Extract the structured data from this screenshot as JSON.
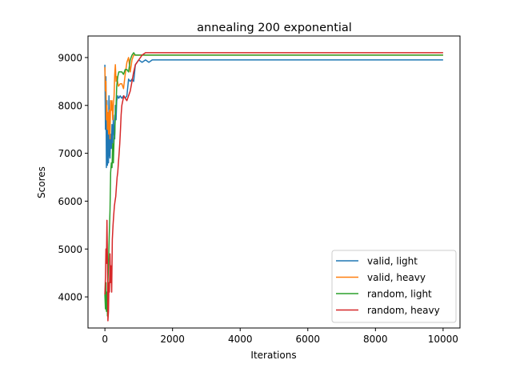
{
  "chart_data": {
    "type": "line",
    "title": "annealing 200 exponential",
    "xlabel": "Iterations",
    "ylabel": "Scores",
    "xlim": [
      -500,
      10500
    ],
    "ylim": [
      3350,
      9450
    ],
    "xticks": [
      0,
      2000,
      4000,
      6000,
      8000,
      10000
    ],
    "yticks": [
      4000,
      5000,
      6000,
      7000,
      8000,
      9000
    ],
    "grid": false,
    "legend_position": "lower-right",
    "series": [
      {
        "name": "valid, light",
        "color": "#1f77b4",
        "points": [
          [
            0,
            8850
          ],
          [
            15,
            7500
          ],
          [
            30,
            8600
          ],
          [
            45,
            6700
          ],
          [
            60,
            8100
          ],
          [
            75,
            6750
          ],
          [
            90,
            7600
          ],
          [
            105,
            6800
          ],
          [
            120,
            8200
          ],
          [
            135,
            7000
          ],
          [
            150,
            6900
          ],
          [
            170,
            7400
          ],
          [
            190,
            7100
          ],
          [
            210,
            7600
          ],
          [
            230,
            7200
          ],
          [
            250,
            7800
          ],
          [
            270,
            7400
          ],
          [
            290,
            7300
          ],
          [
            310,
            8000
          ],
          [
            330,
            7700
          ],
          [
            350,
            8100
          ],
          [
            380,
            8200
          ],
          [
            410,
            8150
          ],
          [
            450,
            8200
          ],
          [
            500,
            8150
          ],
          [
            550,
            8200
          ],
          [
            600,
            8150
          ],
          [
            650,
            8200
          ],
          [
            700,
            8550
          ],
          [
            750,
            8500
          ],
          [
            800,
            8550
          ],
          [
            850,
            8500
          ],
          [
            900,
            8850
          ],
          [
            950,
            8900
          ],
          [
            1000,
            8950
          ],
          [
            1100,
            8900
          ],
          [
            1200,
            8950
          ],
          [
            1300,
            8900
          ],
          [
            1400,
            8950
          ],
          [
            1500,
            8950
          ],
          [
            1700,
            8950
          ],
          [
            2000,
            8950
          ],
          [
            4000,
            8950
          ],
          [
            6000,
            8950
          ],
          [
            8000,
            8950
          ],
          [
            10000,
            8950
          ]
        ]
      },
      {
        "name": "valid, heavy",
        "color": "#ff7f0e",
        "points": [
          [
            0,
            8800
          ],
          [
            15,
            8300
          ],
          [
            30,
            8500
          ],
          [
            45,
            7700
          ],
          [
            60,
            8000
          ],
          [
            75,
            7500
          ],
          [
            90,
            7850
          ],
          [
            110,
            7400
          ],
          [
            130,
            7900
          ],
          [
            150,
            7300
          ],
          [
            170,
            8100
          ],
          [
            190,
            7900
          ],
          [
            210,
            8100
          ],
          [
            230,
            7700
          ],
          [
            250,
            8000
          ],
          [
            270,
            8200
          ],
          [
            290,
            8650
          ],
          [
            310,
            8850
          ],
          [
            330,
            8500
          ],
          [
            350,
            8600
          ],
          [
            400,
            8400
          ],
          [
            450,
            8450
          ],
          [
            500,
            8450
          ],
          [
            550,
            8350
          ],
          [
            600,
            8650
          ],
          [
            650,
            8900
          ],
          [
            700,
            9000
          ],
          [
            750,
            8700
          ],
          [
            800,
            8950
          ],
          [
            850,
            9050
          ],
          [
            900,
            9050
          ],
          [
            1000,
            9050
          ],
          [
            1200,
            9050
          ],
          [
            1500,
            9050
          ],
          [
            2000,
            9050
          ],
          [
            4000,
            9050
          ],
          [
            6000,
            9050
          ],
          [
            8000,
            9050
          ],
          [
            10000,
            9050
          ]
        ]
      },
      {
        "name": "random, light",
        "color": "#2ca02c",
        "points": [
          [
            0,
            4050
          ],
          [
            15,
            3750
          ],
          [
            30,
            4300
          ],
          [
            45,
            3700
          ],
          [
            60,
            4100
          ],
          [
            75,
            3600
          ],
          [
            90,
            4300
          ],
          [
            110,
            4800
          ],
          [
            130,
            5300
          ],
          [
            150,
            5800
          ],
          [
            170,
            6600
          ],
          [
            190,
            6800
          ],
          [
            210,
            6700
          ],
          [
            230,
            7200
          ],
          [
            250,
            6800
          ],
          [
            270,
            7300
          ],
          [
            290,
            7400
          ],
          [
            310,
            7800
          ],
          [
            330,
            8000
          ],
          [
            350,
            8400
          ],
          [
            380,
            8600
          ],
          [
            410,
            8700
          ],
          [
            450,
            8700
          ],
          [
            500,
            8700
          ],
          [
            550,
            8650
          ],
          [
            600,
            8750
          ],
          [
            650,
            8750
          ],
          [
            700,
            8700
          ],
          [
            750,
            8950
          ],
          [
            800,
            9050
          ],
          [
            850,
            9100
          ],
          [
            900,
            9050
          ],
          [
            1000,
            9050
          ],
          [
            1200,
            9050
          ],
          [
            1500,
            9050
          ],
          [
            2000,
            9050
          ],
          [
            4000,
            9050
          ],
          [
            6000,
            9050
          ],
          [
            8000,
            9050
          ],
          [
            10000,
            9050
          ]
        ]
      },
      {
        "name": "random, heavy",
        "color": "#d62728",
        "points": [
          [
            0,
            4050
          ],
          [
            15,
            4400
          ],
          [
            30,
            5000
          ],
          [
            45,
            4700
          ],
          [
            60,
            5600
          ],
          [
            75,
            4800
          ],
          [
            90,
            3500
          ],
          [
            105,
            3700
          ],
          [
            120,
            4300
          ],
          [
            135,
            4100
          ],
          [
            150,
            4900
          ],
          [
            165,
            4300
          ],
          [
            180,
            4650
          ],
          [
            200,
            4100
          ],
          [
            220,
            5200
          ],
          [
            240,
            5500
          ],
          [
            260,
            5700
          ],
          [
            280,
            5900
          ],
          [
            300,
            6000
          ],
          [
            320,
            6100
          ],
          [
            340,
            6300
          ],
          [
            360,
            6500
          ],
          [
            380,
            6600
          ],
          [
            400,
            6800
          ],
          [
            420,
            7000
          ],
          [
            440,
            7200
          ],
          [
            460,
            7500
          ],
          [
            480,
            7800
          ],
          [
            500,
            8000
          ],
          [
            530,
            8100
          ],
          [
            560,
            8200
          ],
          [
            600,
            8150
          ],
          [
            650,
            8100
          ],
          [
            700,
            8200
          ],
          [
            750,
            8300
          ],
          [
            800,
            8500
          ],
          [
            850,
            8700
          ],
          [
            900,
            8850
          ],
          [
            950,
            8900
          ],
          [
            1000,
            8950
          ],
          [
            1050,
            9000
          ],
          [
            1100,
            9050
          ],
          [
            1200,
            9100
          ],
          [
            1400,
            9100
          ],
          [
            2000,
            9100
          ],
          [
            4000,
            9100
          ],
          [
            6000,
            9100
          ],
          [
            8000,
            9100
          ],
          [
            10000,
            9100
          ]
        ]
      }
    ]
  }
}
